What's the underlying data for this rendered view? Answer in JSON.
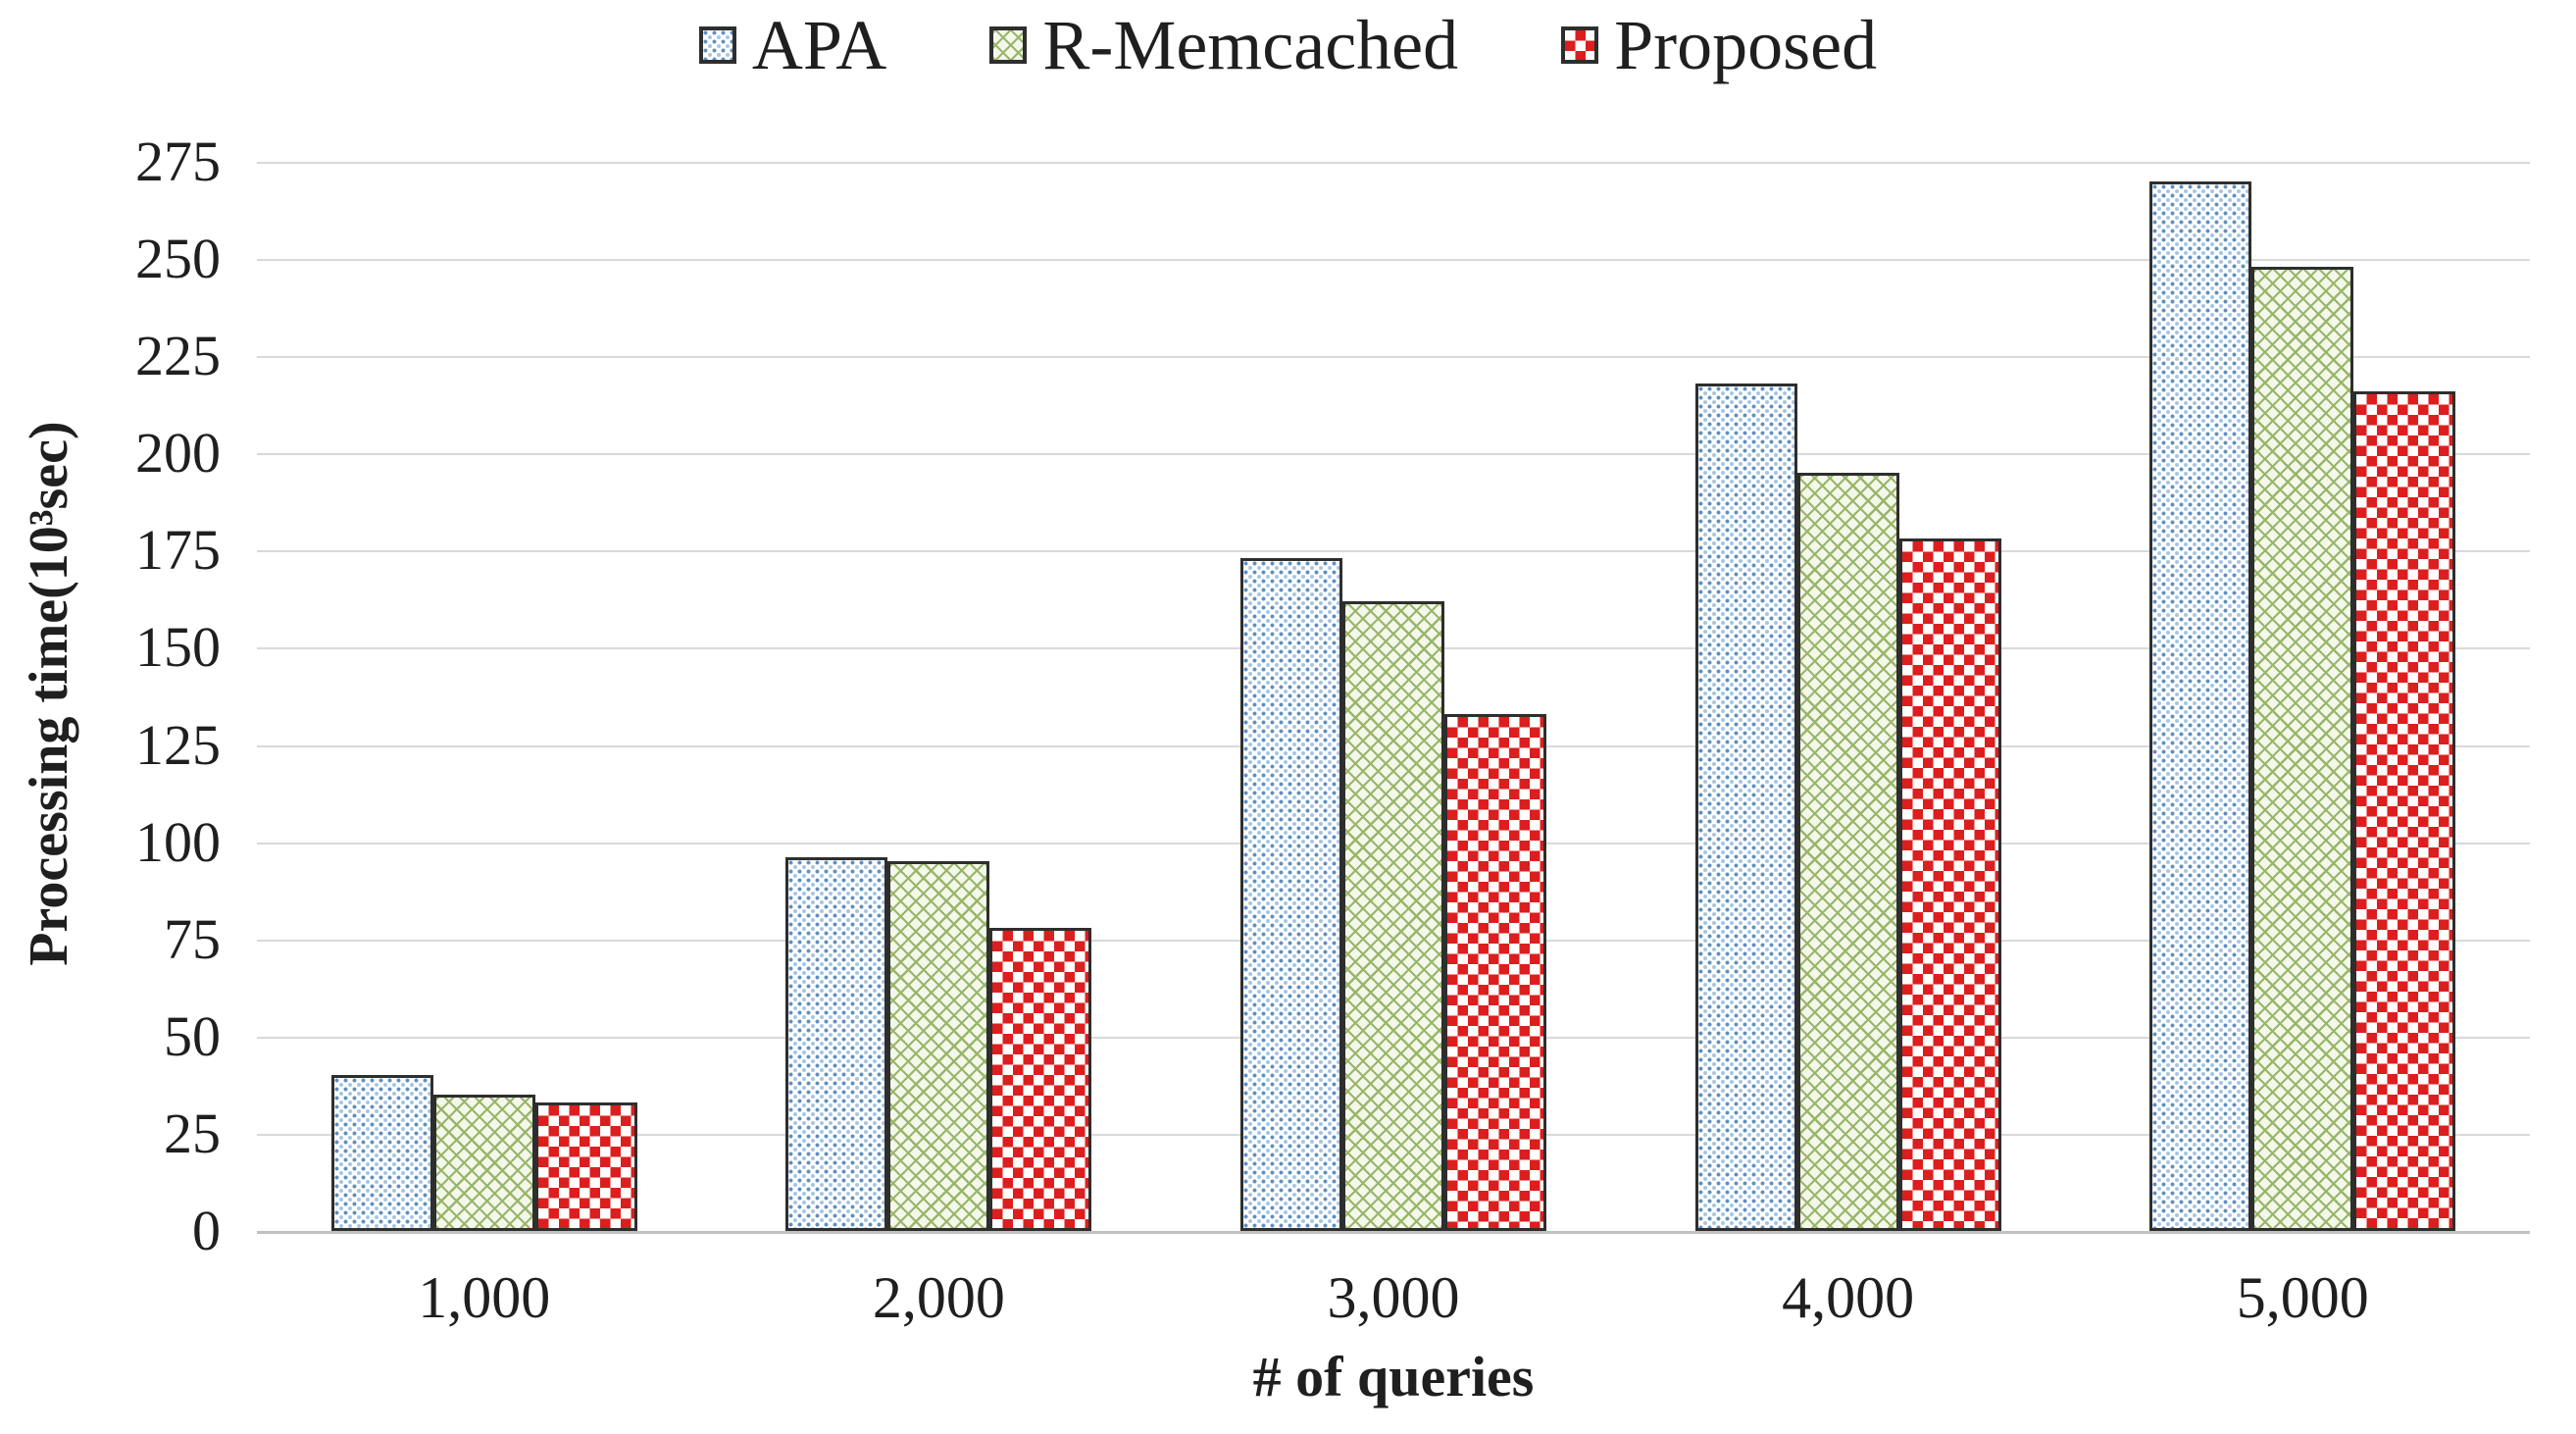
{
  "chart_data": {
    "type": "bar",
    "categories": [
      "1,000",
      "2,000",
      "3,000",
      "4,000",
      "5,000"
    ],
    "series": [
      {
        "name": "APA",
        "pattern": "blue-dots",
        "values": [
          40,
          96,
          173,
          218,
          270
        ]
      },
      {
        "name": "R-Memcached",
        "pattern": "green-diagonal",
        "values": [
          35,
          95,
          162,
          195,
          248
        ]
      },
      {
        "name": "Proposed",
        "pattern": "red-checker",
        "values": [
          33,
          78,
          133,
          178,
          216
        ]
      }
    ],
    "xlabel": "# of queries",
    "ylabel": "Processing time(10³sec)",
    "ylim": [
      0,
      275
    ],
    "yticks": [
      0,
      25,
      50,
      75,
      100,
      125,
      150,
      175,
      200,
      225,
      250,
      275
    ],
    "grid": true,
    "legend_position": "top"
  },
  "colors": {
    "apa_dot": "#5e8fc0",
    "apa_dot_light": "#a6c4e1",
    "rmem_bg": "#f3f8ea",
    "rmem_line": "#9ab56a",
    "proposed_red": "#dd1e1e",
    "bar_border": "#2e2e2e",
    "gridline": "#d9d9d9",
    "axis_line": "#c0c0c0",
    "text": "#1f1f1f"
  }
}
